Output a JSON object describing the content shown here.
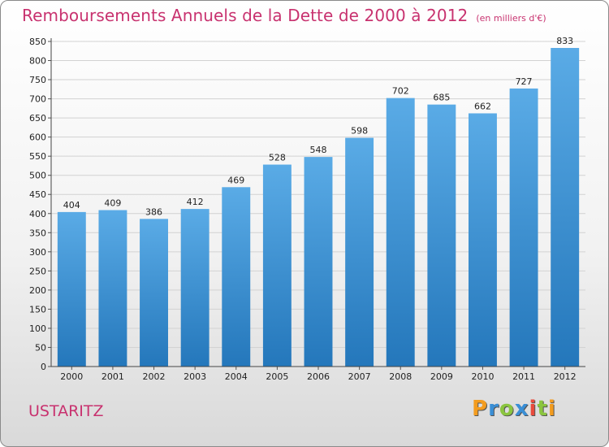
{
  "header": {
    "title": "Remboursements Annuels de la Dette de 2000 à 2012",
    "subtitle": "(en milliers d'€)"
  },
  "footer": {
    "town": "USTARITZ",
    "logo_text": "Proxiti"
  },
  "colors": {
    "bar_top": "#5aabe6",
    "bar_bottom": "#2477bb",
    "accent": "#c8326f"
  },
  "chart_data": {
    "type": "bar",
    "title": "Remboursements Annuels de la Dette de 2000 à 2012",
    "subtitle": "(en milliers d'€)",
    "xlabel": "",
    "ylabel": "",
    "categories": [
      "2000",
      "2001",
      "2002",
      "2003",
      "2004",
      "2005",
      "2006",
      "2007",
      "2008",
      "2009",
      "2010",
      "2011",
      "2012"
    ],
    "values": [
      404,
      409,
      386,
      412,
      469,
      528,
      548,
      598,
      702,
      685,
      662,
      727,
      833
    ],
    "yticks": [
      0,
      50,
      100,
      150,
      200,
      250,
      300,
      350,
      400,
      450,
      500,
      550,
      600,
      650,
      700,
      750,
      800,
      850
    ],
    "ylim": [
      0,
      850
    ],
    "grid": true,
    "legend": "none",
    "data_labels": true
  }
}
